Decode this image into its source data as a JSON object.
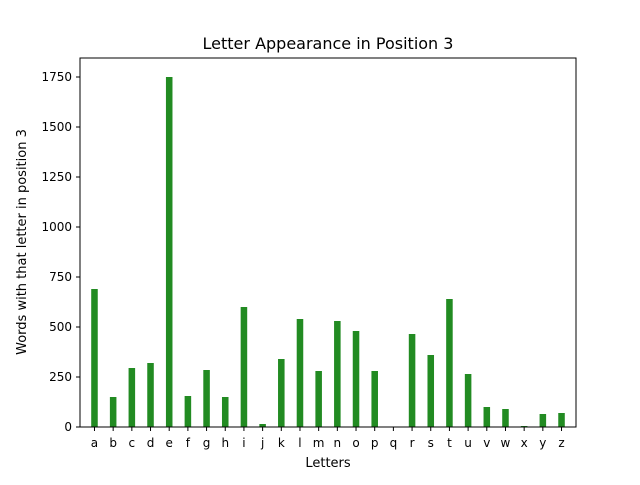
{
  "chart_data": {
    "type": "bar",
    "title": "Letter Appearance in Position 3",
    "xlabel": "Letters",
    "ylabel": "Words with that letter in position 3",
    "categories": [
      "a",
      "b",
      "c",
      "d",
      "e",
      "f",
      "g",
      "h",
      "i",
      "j",
      "k",
      "l",
      "m",
      "n",
      "o",
      "p",
      "q",
      "r",
      "s",
      "t",
      "u",
      "v",
      "w",
      "x",
      "y",
      "z"
    ],
    "values": [
      690,
      150,
      295,
      320,
      1750,
      155,
      285,
      150,
      600,
      15,
      340,
      540,
      280,
      530,
      480,
      280,
      0,
      465,
      360,
      640,
      265,
      100,
      90,
      5,
      65,
      70
    ],
    "ylim": [
      0,
      1845
    ],
    "yticks": [
      0,
      250,
      500,
      750,
      1000,
      1250,
      1500,
      1750
    ],
    "bar_color": "#228b22",
    "grid": false,
    "legend": "none"
  }
}
